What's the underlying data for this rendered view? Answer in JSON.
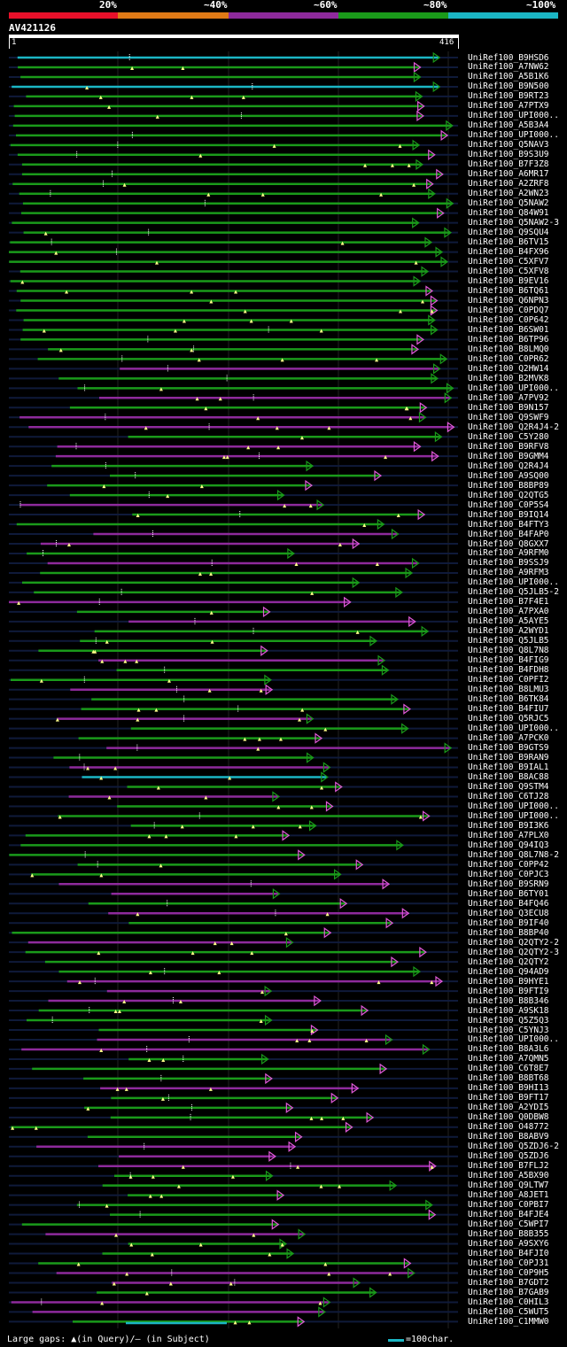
{
  "legend": {
    "labels": [
      "20%",
      "~40%",
      "~60%",
      "~80%",
      "~100%"
    ],
    "colors": [
      "#e8102a",
      "#e07a16",
      "#8e2a9c",
      "#1a9a1a",
      "#1bb6c4"
    ]
  },
  "query": {
    "name": "AV421126",
    "start": "1",
    "end": "416",
    "length": 416
  },
  "footer": {
    "gaps_text": "Large gaps: ▲(in Query)/— (in Subject)",
    "scale_text": "=100char."
  },
  "hits": [
    "UniRef100_B9HSD6",
    "UniRef100_A7NW62",
    "UniRef100_A5B1K6",
    "UniRef100_B9N500",
    "UniRef100_B9RT23",
    "UniRef100_A7PTX9",
    "UniRef100_UPI000..",
    "UniRef100_A5B3A4",
    "UniRef100_UPI000..",
    "UniRef100_Q5NAV3",
    "UniRef100_B9S3U9",
    "UniRef100_B7F3Z8",
    "UniRef100_A6MR17",
    "UniRef100_A2ZRF8",
    "UniRef100_A2WN23",
    "UniRef100_Q5NAW2",
    "UniRef100_Q84W91",
    "UniRef100_Q5NAW2-3",
    "UniRef100_Q9SQU4",
    "UniRef100_B6TV15",
    "UniRef100_B4FX96",
    "UniRef100_C5XFV7",
    "UniRef100_C5XFV8",
    "UniRef100_B9EV16",
    "UniRef100_B6TQ61",
    "UniRef100_Q6NPN3",
    "UniRef100_C0PDQ7",
    "UniRef100_C0P642",
    "UniRef100_B6SW01",
    "UniRef100_B6TP96",
    "UniRef100_B8LMQ0",
    "UniRef100_C0PR62",
    "UniRef100_Q2HW14",
    "UniRef100_B2MVK8",
    "UniRef100_UPI000..",
    "UniRef100_A7PV92",
    "UniRef100_B9N157",
    "UniRef100_Q9SWF9",
    "UniRef100_Q2R4J4-2",
    "UniRef100_C5Y280",
    "UniRef100_B9RFV8",
    "UniRef100_B9GMM4",
    "UniRef100_Q2R4J4",
    "UniRef100_A9SQ00",
    "UniRef100_B8BP89",
    "UniRef100_Q2QTG5",
    "UniRef100_C0P5S4",
    "UniRef100_B9IQ14",
    "UniRef100_B4FTY3",
    "UniRef100_B4FAP0",
    "UniRef100_Q8GXX7",
    "UniRef100_A9RFM0",
    "UniRef100_B9SSJ9",
    "UniRef100_A9RFM3",
    "UniRef100_UPI000..",
    "UniRef100_Q5JLB5-2",
    "UniRef100_B7F4E1",
    "UniRef100_A7PXA0",
    "UniRef100_A5AYE5",
    "UniRef100_A2WYD1",
    "UniRef100_Q5JLB5",
    "UniRef100_Q8L7N8",
    "UniRef100_B4FIG9",
    "UniRef100_B4FDH8",
    "UniRef100_C0PFI2",
    "UniRef100_B8LMU3",
    "UniRef100_B6TK84",
    "UniRef100_B4FIU7",
    "UniRef100_Q5RJC5",
    "UniRef100_UPI000..",
    "UniRef100_A7PCK0",
    "UniRef100_B9GTS9",
    "UniRef100_B9RAN9",
    "UniRef100_B9IAL1",
    "UniRef100_B8AC88",
    "UniRef100_Q9STM4",
    "UniRef100_C6TJ28",
    "UniRef100_UPI000..",
    "UniRef100_UPI000..",
    "UniRef100_B9I3K6",
    "UniRef100_A7PLX0",
    "UniRef100_Q94IQ3",
    "UniRef100_Q8L7N8-2",
    "UniRef100_C0PP42",
    "UniRef100_C0PJC3",
    "UniRef100_B9SRN9",
    "UniRef100_B6TY01",
    "UniRef100_B4FQ46",
    "UniRef100_Q3ECU8",
    "UniRef100_B9IF40",
    "UniRef100_B8BP40",
    "UniRef100_Q2QTY2-2",
    "UniRef100_Q2QTY2-3",
    "UniRef100_Q2QTY2",
    "UniRef100_Q94AD9",
    "UniRef100_B9HYE1",
    "UniRef100_B9FTI9",
    "UniRef100_B8B346",
    "UniRef100_A9SK18",
    "UniRef100_Q5Z5Q3",
    "UniRef100_C5YNJ3",
    "UniRef100_UPI000..",
    "UniRef100_B8A3L6",
    "UniRef100_A7QMN5",
    "UniRef100_C6T8E7",
    "UniRef100_B8BT68",
    "UniRef100_B9HI13",
    "UniRef100_B9FT17",
    "UniRef100_A2YDI5",
    "UniRef100_Q0DBW8",
    "UniRef100_O48772",
    "UniRef100_B8ABV9",
    "UniRef100_Q5ZDJ6-2",
    "UniRef100_Q5ZDJ6",
    "UniRef100_B7FLJ2",
    "UniRef100_A5BX90",
    "UniRef100_Q9LTW7",
    "UniRef100_A8JET1",
    "UniRef100_C0PBI7",
    "UniRef100_B4FJE4",
    "UniRef100_C5WPI7",
    "UniRef100_B8B355",
    "UniRef100_A9SXY6",
    "UniRef100_B4FJI0",
    "UniRef100_C0PJ31",
    "UniRef100_C0P9H5",
    "UniRef100_B7GDT2",
    "UniRef100_B7GAB9",
    "UniRef100_C0HIL3",
    "UniRef100_C5WUT5",
    "UniRef100_C1MMW0"
  ]
}
